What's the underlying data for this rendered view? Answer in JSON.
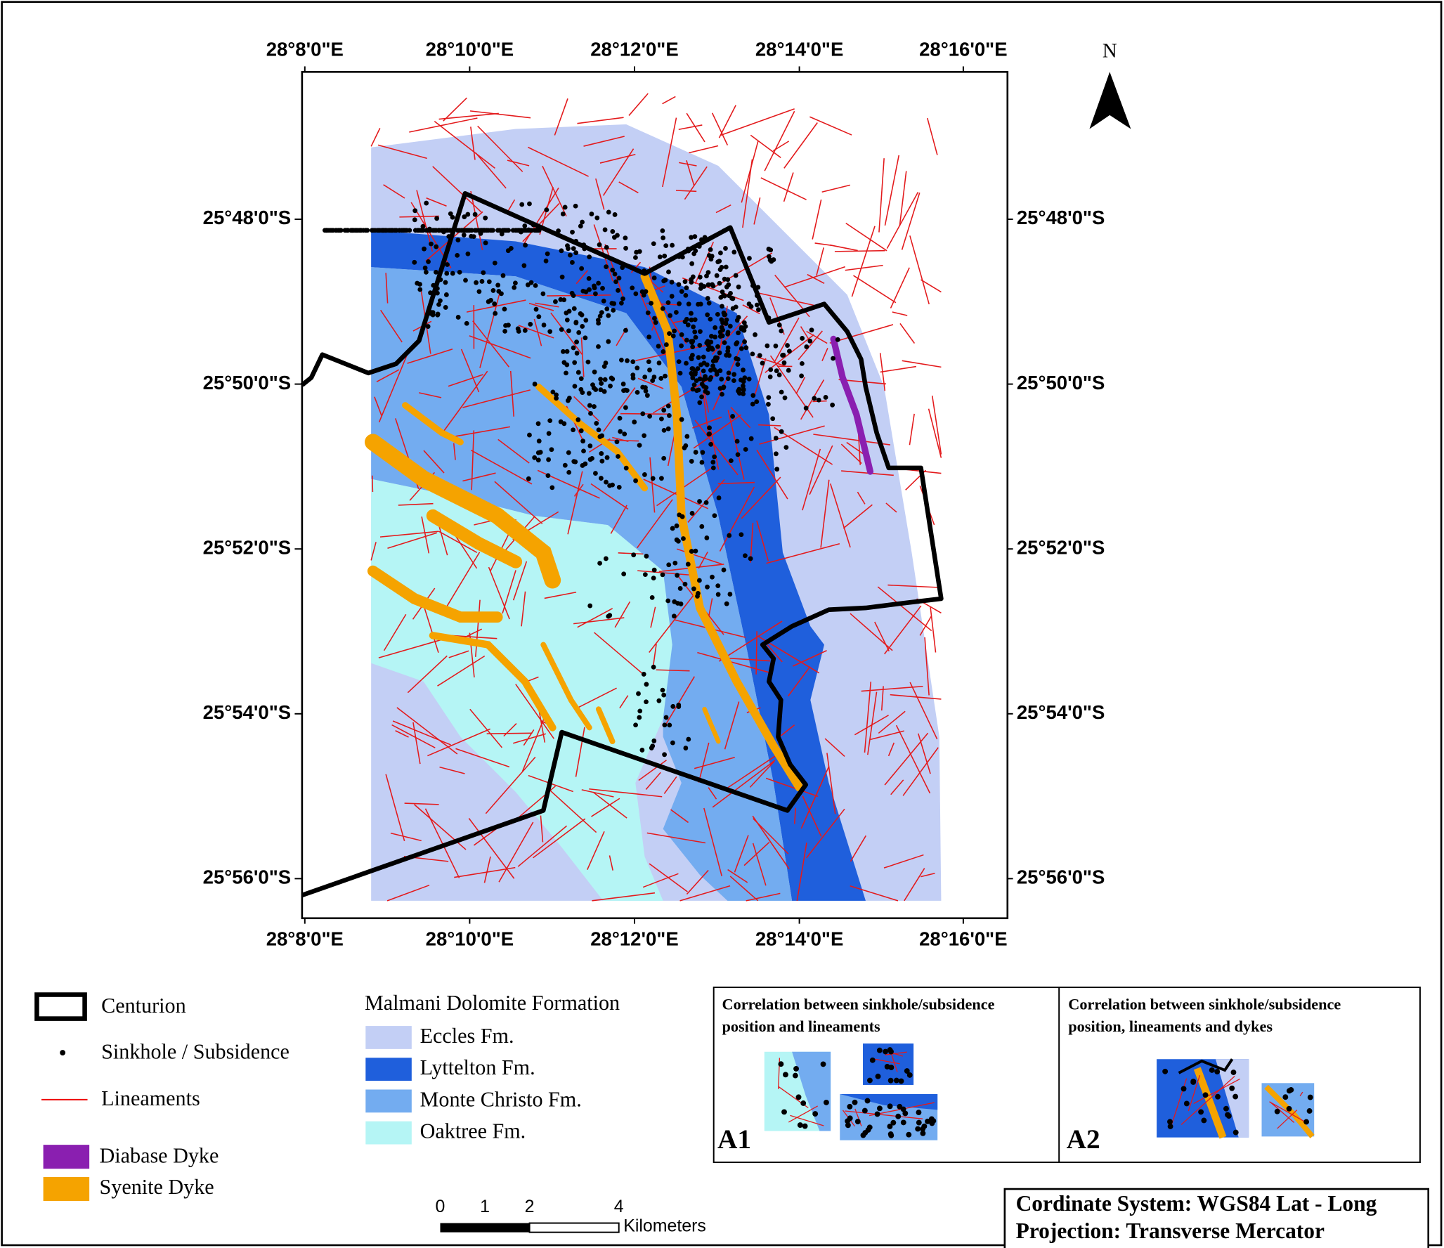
{
  "map": {
    "north_label": "N",
    "longitude_ticks": [
      "28°8'0\"E",
      "28°10'0\"E",
      "28°12'0\"E",
      "28°14'0\"E",
      "28°16'0\"E"
    ],
    "latitude_ticks": [
      "25°48'0\"S",
      "25°50'0\"S",
      "25°52'0\"S",
      "25°54'0\"S",
      "25°56'0\"S"
    ]
  },
  "legend": {
    "centurion": "Centurion",
    "sinkhole": "Sinkhole / Subsidence",
    "lineaments": "Lineaments",
    "diabase": "Diabase Dyke",
    "syenite": "Syenite Dyke"
  },
  "formation_legend": {
    "title": "Malmani Dolomite Formation",
    "units": [
      "Eccles Fm.",
      "Lyttelton Fm.",
      "Monte Christo Fm.",
      "Oaktree Fm."
    ]
  },
  "insets": [
    {
      "title_lines": [
        "Correlation between sinkhole/subsidence",
        "position and lineaments"
      ],
      "label": "A1"
    },
    {
      "title_lines": [
        "Correlation between sinkhole/subsidence",
        "position, lineaments and dykes"
      ],
      "label": "A2"
    }
  ],
  "scale_bar": {
    "labels": [
      0,
      1,
      2,
      4
    ],
    "unit": "Kilometers"
  },
  "info_box": {
    "lines": [
      "Cordinate System: WGS84 Lat - Long",
      "Projection: Transverse Mercator"
    ]
  }
}
